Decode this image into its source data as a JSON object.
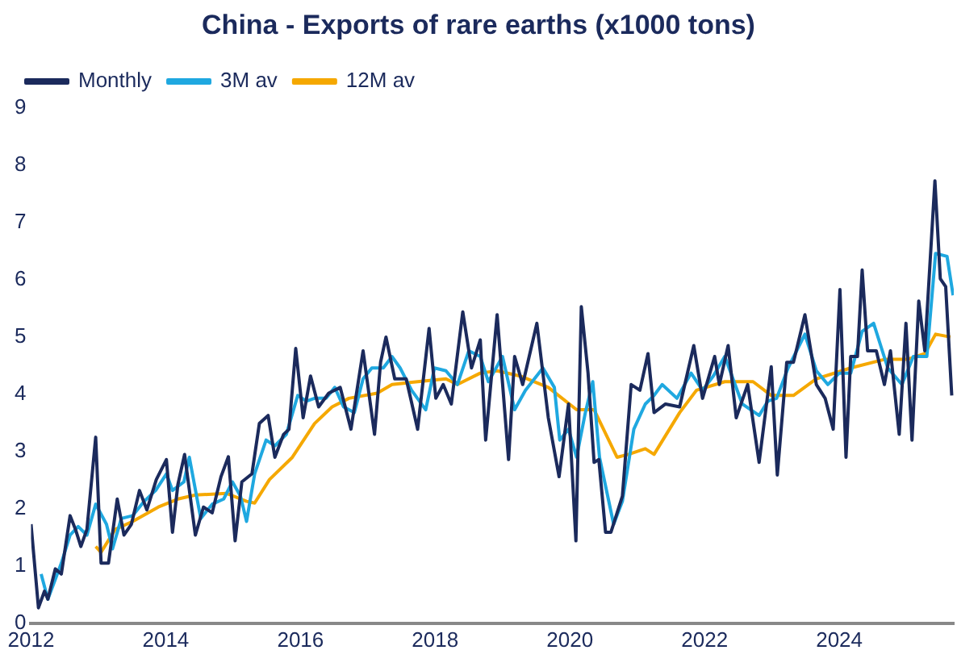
{
  "chart_data": {
    "type": "line",
    "title": "China - Exports of rare earths (x1000 tons)",
    "xlim": [
      2012,
      2025.7
    ],
    "xticks": [
      2012,
      2014,
      2016,
      2018,
      2020,
      2022,
      2024
    ],
    "ylim": [
      0,
      9
    ],
    "yticks": [
      0,
      1,
      2,
      3,
      4,
      5,
      6,
      7,
      8,
      9
    ],
    "grid": false,
    "legend": "top left",
    "marker": "none",
    "line_style": "solid",
    "series": [
      {
        "name": "Monthly",
        "color": "#1b2a5c",
        "x": [
          2012.0,
          2012.11,
          2012.2,
          2012.25,
          2012.36,
          2012.45,
          2012.58,
          2012.66,
          2012.74,
          2012.83,
          2012.96,
          2013.04,
          2013.15,
          2013.28,
          2013.38,
          2013.49,
          2013.61,
          2013.72,
          2013.86,
          2014.01,
          2014.1,
          2014.18,
          2014.28,
          2014.44,
          2014.56,
          2014.69,
          2014.82,
          2014.93,
          2015.03,
          2015.13,
          2015.28,
          2015.39,
          2015.52,
          2015.62,
          2015.75,
          2015.83,
          2015.93,
          2016.04,
          2016.15,
          2016.27,
          2016.42,
          2016.59,
          2016.75,
          2016.93,
          2017.1,
          2017.19,
          2017.27,
          2017.4,
          2017.57,
          2017.74,
          2017.91,
          2018.01,
          2018.12,
          2018.24,
          2018.41,
          2018.54,
          2018.67,
          2018.75,
          2018.92,
          2019.09,
          2019.18,
          2019.3,
          2019.51,
          2019.68,
          2019.84,
          2019.98,
          2020.09,
          2020.17,
          2020.27,
          2020.36,
          2020.43,
          2020.53,
          2020.61,
          2020.78,
          2020.91,
          2021.04,
          2021.16,
          2021.25,
          2021.42,
          2021.63,
          2021.84,
          2021.97,
          2022.15,
          2022.22,
          2022.35,
          2022.47,
          2022.64,
          2022.81,
          2022.99,
          2023.08,
          2023.22,
          2023.32,
          2023.49,
          2023.66,
          2023.79,
          2023.91,
          2024.01,
          2024.1,
          2024.17,
          2024.27,
          2024.34,
          2024.42,
          2024.55,
          2024.67,
          2024.76,
          2024.89,
          2024.99,
          2025.08,
          2025.18,
          2025.27,
          2025.42,
          2025.5,
          2025.58,
          2025.67
        ],
        "values": [
          1.73,
          0.27,
          0.56,
          0.42,
          0.95,
          0.86,
          1.88,
          1.64,
          1.34,
          1.64,
          3.25,
          1.05,
          1.05,
          2.17,
          1.54,
          1.73,
          2.32,
          1.98,
          2.51,
          2.86,
          1.59,
          2.42,
          2.95,
          1.54,
          2.03,
          1.93,
          2.56,
          2.91,
          1.44,
          2.47,
          2.61,
          3.49,
          3.63,
          2.9,
          3.3,
          3.39,
          4.8,
          3.59,
          4.32,
          3.78,
          4.02,
          4.12,
          3.39,
          4.76,
          3.3,
          4.56,
          5.0,
          4.27,
          4.27,
          3.39,
          5.15,
          3.93,
          4.17,
          3.83,
          5.44,
          4.46,
          4.95,
          3.2,
          5.39,
          2.86,
          4.66,
          4.17,
          5.24,
          3.59,
          2.56,
          3.83,
          1.44,
          5.53,
          4.37,
          2.81,
          2.86,
          1.59,
          1.59,
          2.22,
          4.17,
          4.07,
          4.71,
          3.68,
          3.83,
          3.78,
          4.85,
          3.93,
          4.66,
          4.17,
          4.85,
          3.59,
          4.17,
          2.81,
          4.48,
          2.59,
          4.56,
          4.56,
          5.39,
          4.17,
          3.93,
          3.39,
          5.83,
          2.9,
          4.66,
          4.66,
          6.17,
          4.76,
          4.76,
          4.17,
          4.76,
          3.3,
          5.24,
          3.2,
          5.63,
          4.76,
          7.73,
          6.02,
          5.88,
          3.98
        ]
      },
      {
        "name": "3M av",
        "color": "#1fa8e0",
        "x": [
          2012.15,
          2012.25,
          2012.45,
          2012.58,
          2012.7,
          2012.83,
          2012.96,
          2013.12,
          2013.21,
          2013.34,
          2013.51,
          2013.68,
          2013.85,
          2014.01,
          2014.1,
          2014.27,
          2014.35,
          2014.52,
          2014.69,
          2014.86,
          2014.99,
          2015.11,
          2015.2,
          2015.32,
          2015.49,
          2015.62,
          2015.79,
          2015.96,
          2016.09,
          2016.21,
          2016.38,
          2016.51,
          2016.64,
          2016.8,
          2016.93,
          2017.06,
          2017.23,
          2017.36,
          2017.48,
          2017.65,
          2017.86,
          2017.99,
          2018.16,
          2018.33,
          2018.5,
          2018.67,
          2018.79,
          2019.0,
          2019.18,
          2019.34,
          2019.6,
          2019.77,
          2019.85,
          2019.98,
          2020.1,
          2020.23,
          2020.34,
          2020.44,
          2020.65,
          2020.78,
          2020.95,
          2021.12,
          2021.25,
          2021.37,
          2021.59,
          2021.8,
          2021.97,
          2022.13,
          2022.3,
          2022.56,
          2022.81,
          2022.94,
          2023.07,
          2023.24,
          2023.49,
          2023.66,
          2023.83,
          2024.0,
          2024.17,
          2024.34,
          2024.51,
          2024.72,
          2024.93,
          2025.1,
          2025.3,
          2025.43,
          2025.6,
          2025.69
        ],
        "values": [
          0.86,
          0.42,
          1.05,
          1.54,
          1.69,
          1.54,
          2.08,
          1.73,
          1.3,
          1.83,
          1.88,
          2.13,
          2.32,
          2.61,
          2.32,
          2.47,
          2.9,
          1.83,
          2.08,
          2.17,
          2.47,
          2.22,
          1.78,
          2.61,
          3.2,
          3.1,
          3.3,
          3.98,
          3.88,
          3.93,
          3.93,
          4.12,
          3.78,
          3.68,
          4.27,
          4.46,
          4.46,
          4.66,
          4.46,
          4.07,
          3.73,
          4.46,
          4.41,
          4.17,
          4.76,
          4.66,
          4.22,
          4.66,
          3.73,
          4.07,
          4.46,
          4.12,
          3.2,
          3.39,
          2.9,
          3.68,
          4.22,
          2.9,
          1.73,
          2.13,
          3.39,
          3.83,
          3.98,
          4.17,
          3.93,
          4.37,
          4.07,
          4.32,
          4.66,
          3.83,
          3.63,
          3.88,
          3.93,
          4.46,
          5.05,
          4.41,
          4.17,
          4.37,
          4.37,
          5.1,
          5.24,
          4.46,
          4.17,
          4.66,
          4.66,
          6.46,
          6.41,
          5.73
        ]
      },
      {
        "name": "12M av",
        "color": "#f5a800",
        "x": [
          2012.96,
          2013.04,
          2013.25,
          2013.51,
          2013.89,
          2014.18,
          2014.44,
          2014.9,
          2015.2,
          2015.32,
          2015.54,
          2015.88,
          2016.21,
          2016.47,
          2016.72,
          2017.14,
          2017.36,
          2017.74,
          2018.16,
          2018.33,
          2018.67,
          2018.92,
          2019.26,
          2019.68,
          2020.1,
          2020.36,
          2020.7,
          2020.87,
          2021.12,
          2021.25,
          2021.63,
          2021.88,
          2022.3,
          2022.72,
          2022.99,
          2023.32,
          2023.66,
          2024.17,
          2024.67,
          2025.01,
          2025.27,
          2025.43,
          2025.65
        ],
        "values": [
          1.34,
          1.24,
          1.64,
          1.78,
          2.03,
          2.17,
          2.24,
          2.27,
          2.13,
          2.1,
          2.51,
          2.9,
          3.49,
          3.78,
          3.93,
          4.02,
          4.17,
          4.22,
          4.27,
          4.17,
          4.37,
          4.41,
          4.32,
          4.12,
          3.73,
          3.73,
          2.9,
          2.95,
          3.05,
          2.95,
          3.68,
          4.07,
          4.22,
          4.22,
          3.98,
          3.98,
          4.27,
          4.46,
          4.61,
          4.61,
          4.71,
          5.05,
          5.0
        ]
      }
    ]
  }
}
